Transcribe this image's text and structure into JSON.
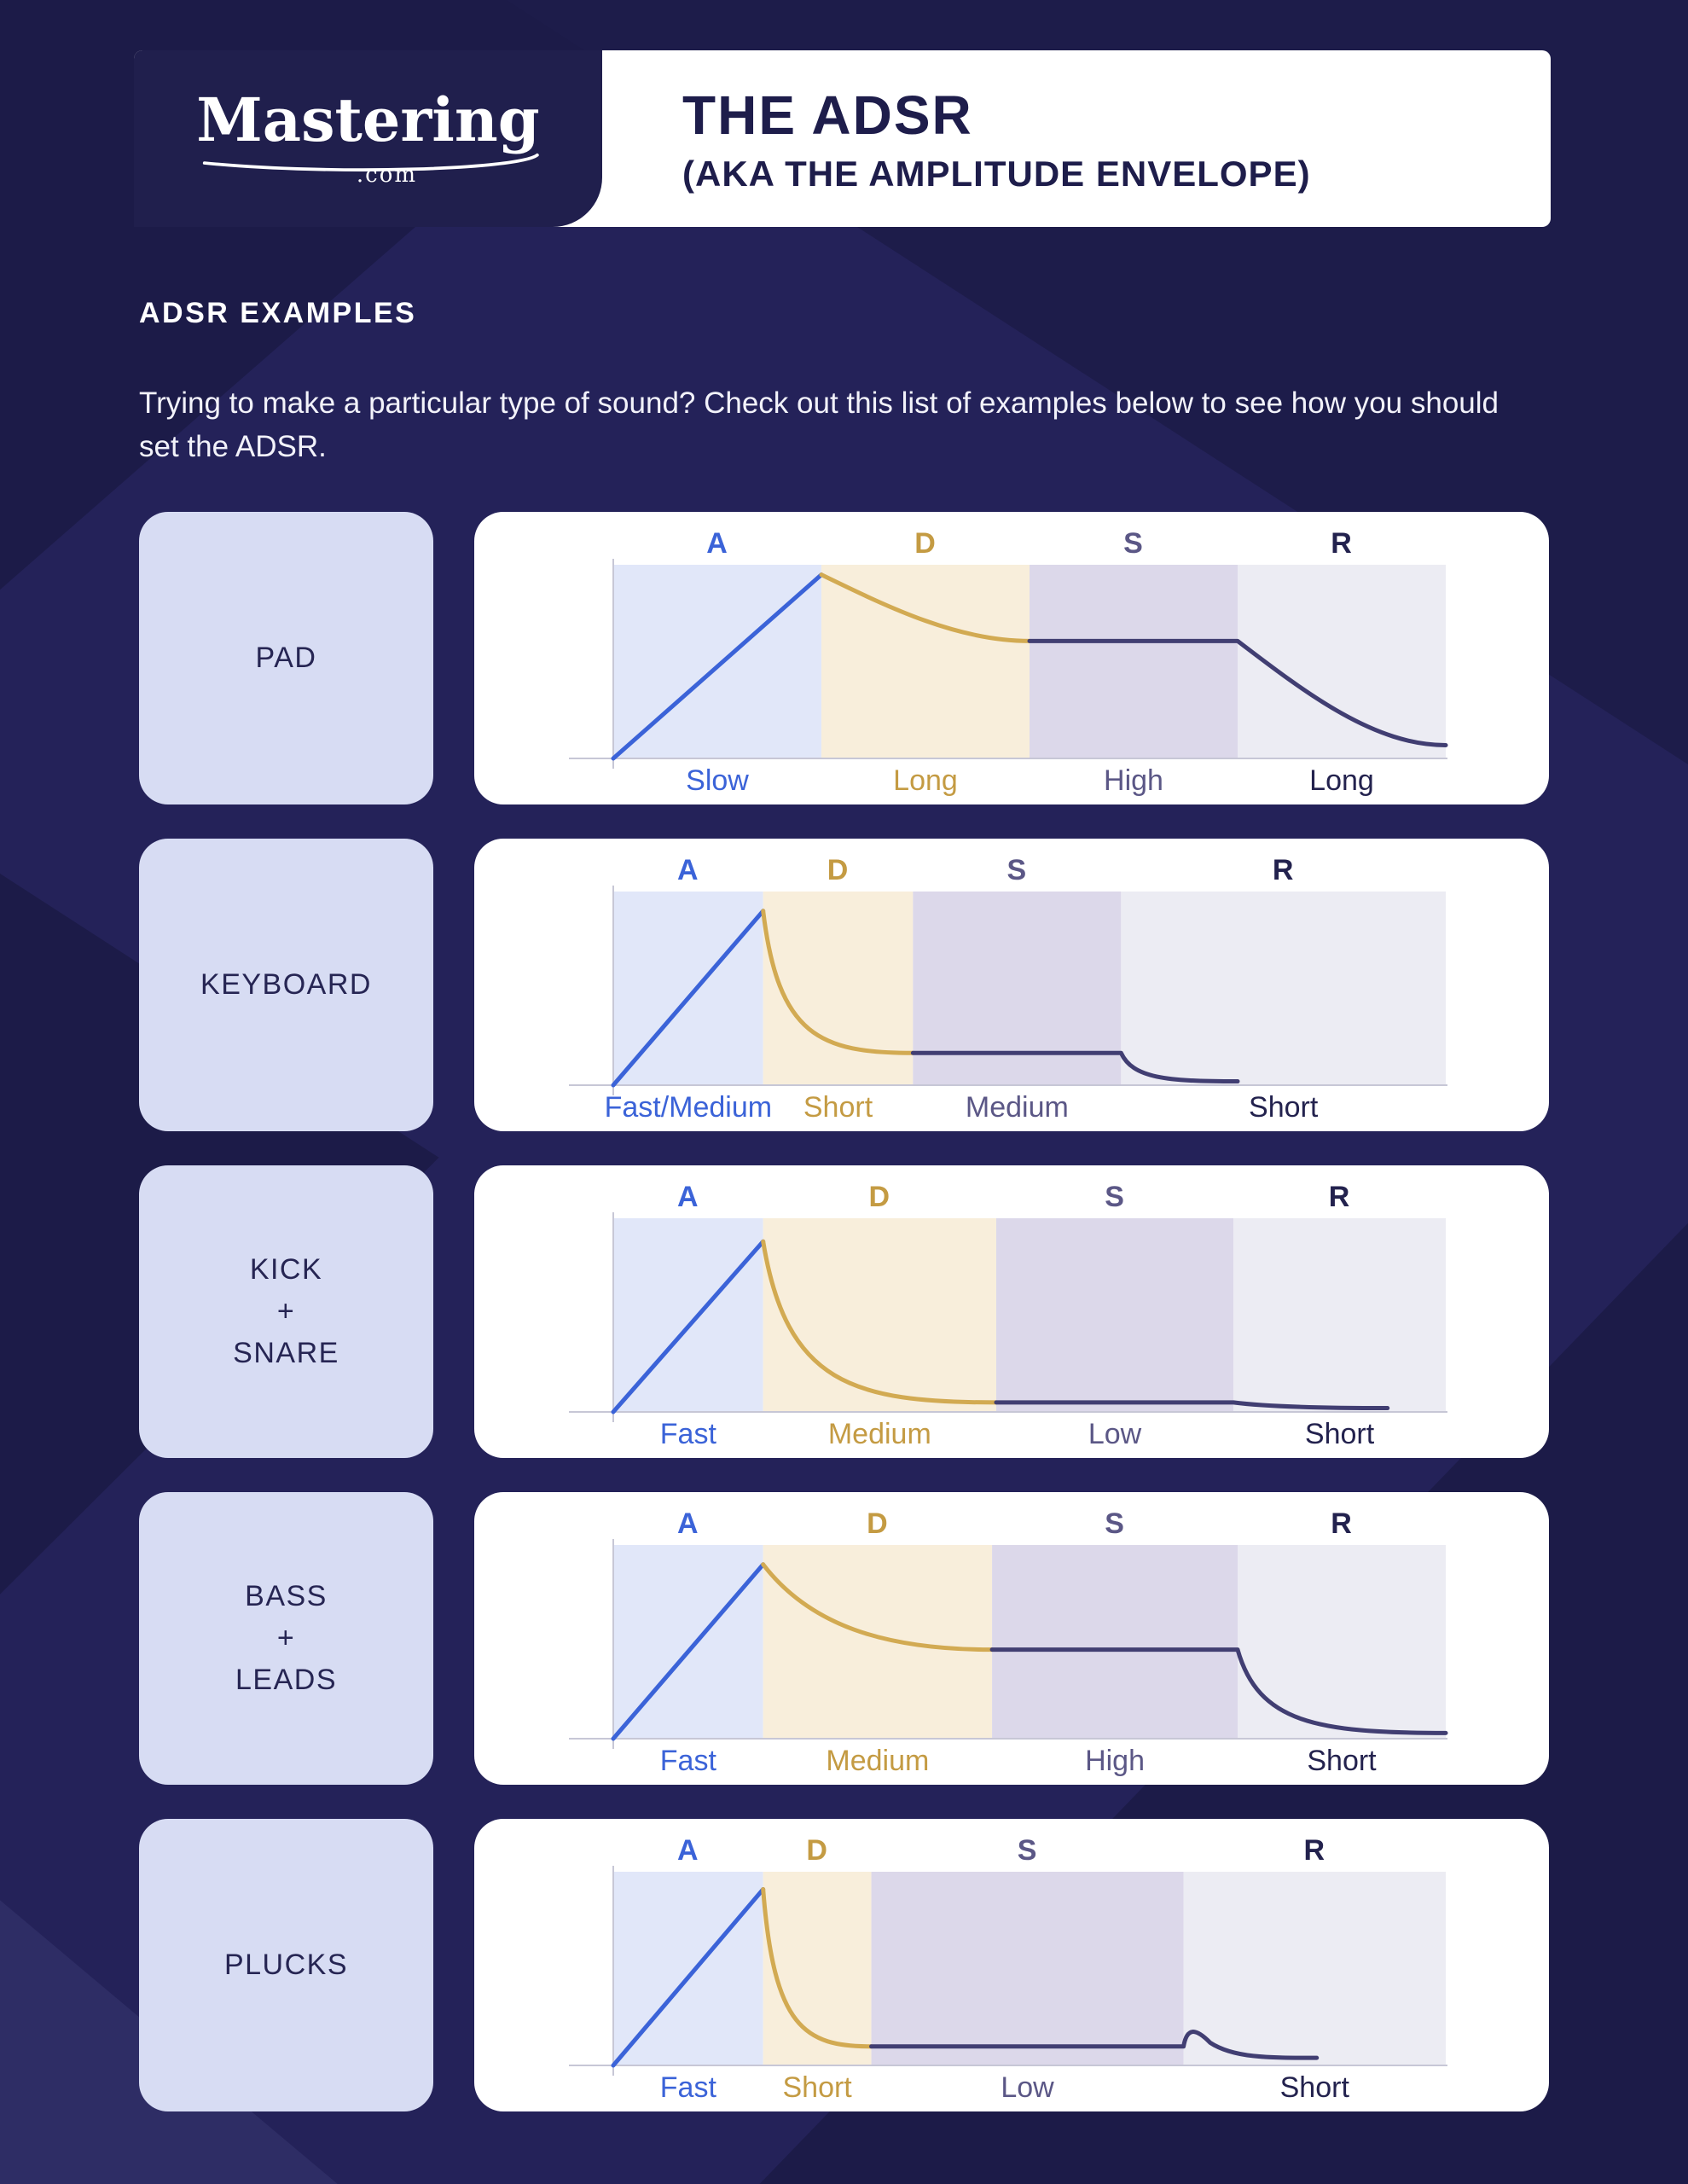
{
  "header": {
    "logo_brand": "Mastering",
    "logo_domain": ".com",
    "title_line1": "THE ADSR",
    "title_line2": "(AKA THE AMPLITUDE ENVELOPE)"
  },
  "intro": {
    "heading": "ADSR EXAMPLES",
    "description": "Trying to make a particular type of sound? Check out this list of examples below to see how you should set the ADSR."
  },
  "colors": {
    "page_bg": "#242259",
    "panel_bg": "#ffffff",
    "label_box_bg": "#d7dcf3",
    "attack": "#3b63d8",
    "decay": "#d2aa52",
    "sustain_release": "#413e72",
    "letter_a": "#3b63d8",
    "letter_d": "#c49b43",
    "letter_s": "#5b5786",
    "letter_r": "#23224e",
    "band_a": "#e1e7f9",
    "band_d": "#f8eedb",
    "band_s": "#dcd8ea",
    "band_r": "#ececf3",
    "axis": "#c7c7d6"
  },
  "chart_data": [
    {
      "type": "line",
      "instrument": "PAD",
      "instrument_lines": [
        "PAD"
      ],
      "letters": [
        "A",
        "D",
        "S",
        "R"
      ],
      "labels": [
        "Slow",
        "Long",
        "High",
        "Long"
      ],
      "sections": [
        0.25,
        0.5,
        0.75
      ],
      "peak": 0.97,
      "sustain_level": 0.62,
      "decay_shape": "gentle",
      "release_shape": "gentle",
      "release_end": 1.0,
      "release_floor": 0.07
    },
    {
      "type": "line",
      "instrument": "KEYBOARD",
      "instrument_lines": [
        "KEYBOARD"
      ],
      "letters": [
        "A",
        "D",
        "S",
        "R"
      ],
      "labels": [
        "Fast/Medium",
        "Short",
        "Medium",
        "Short"
      ],
      "sections": [
        0.18,
        0.36,
        0.61
      ],
      "peak": 0.92,
      "sustain_level": 0.17,
      "decay_shape": "steep",
      "release_shape": "steep",
      "release_end": 0.75,
      "release_floor": 0.02
    },
    {
      "type": "line",
      "instrument": "KICK + SNARE",
      "instrument_lines": [
        "KICK",
        "+",
        "SNARE"
      ],
      "letters": [
        "A",
        "D",
        "S",
        "R"
      ],
      "labels": [
        "Fast",
        "Medium",
        "Low",
        "Short"
      ],
      "sections": [
        0.18,
        0.46,
        0.745
      ],
      "peak": 0.9,
      "sustain_level": 0.05,
      "decay_shape": "steep",
      "release_shape": "medium",
      "release_end": 0.93,
      "release_floor": 0.02
    },
    {
      "type": "line",
      "instrument": "BASS + LEADS",
      "instrument_lines": [
        "BASS",
        "+",
        "LEADS"
      ],
      "letters": [
        "A",
        "D",
        "S",
        "R"
      ],
      "labels": [
        "Fast",
        "Medium",
        "High",
        "Short"
      ],
      "sections": [
        0.18,
        0.455,
        0.75
      ],
      "peak": 0.92,
      "sustain_level": 0.47,
      "decay_shape": "medium",
      "release_shape": "steep",
      "release_end": 1.0,
      "release_floor": 0.03
    },
    {
      "type": "line",
      "instrument": "PLUCKS",
      "instrument_lines": [
        "PLUCKS"
      ],
      "letters": [
        "A",
        "D",
        "S",
        "R"
      ],
      "labels": [
        "Fast",
        "Short",
        "Low",
        "Short"
      ],
      "sections": [
        0.18,
        0.31,
        0.685
      ],
      "peak": 0.93,
      "sustain_level": 0.1,
      "decay_shape": "steep",
      "release_shape": "steep",
      "bump": 0.2,
      "release_end": 0.845,
      "release_floor": 0.04
    }
  ]
}
